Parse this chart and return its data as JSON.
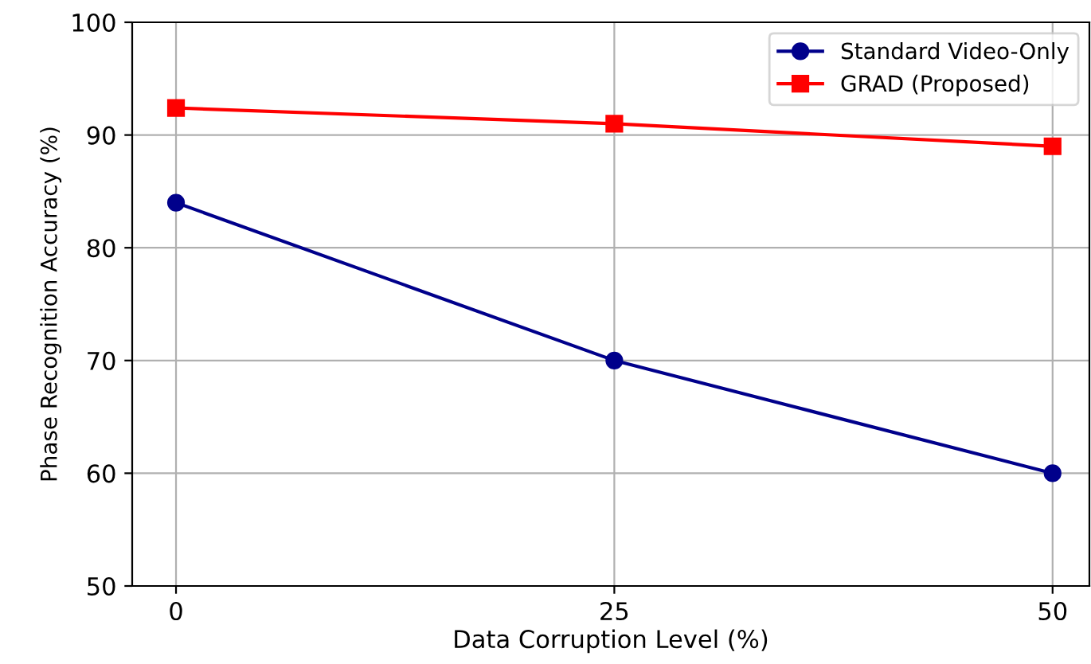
{
  "chart_data": {
    "type": "line",
    "xlabel": "Data Corruption Level (%)",
    "ylabel": "Phase Recognition Accuracy (%)",
    "x": [
      0,
      25,
      50
    ],
    "series": [
      {
        "name": "Standard Video-Only",
        "color": "#00008b",
        "values": [
          84,
          70,
          60
        ],
        "marker": "circle"
      },
      {
        "name": "GRAD (Proposed)",
        "color": "#ff0000",
        "values": [
          92.4,
          91,
          89
        ],
        "marker": "square"
      }
    ],
    "xlim": [
      -2.5,
      52.1
    ],
    "ylim": [
      50,
      100
    ],
    "xticks": [
      0,
      25,
      50
    ],
    "yticks": [
      50,
      60,
      70,
      80,
      90,
      100
    ],
    "grid": true,
    "legend": "top right",
    "line_style": "solid"
  }
}
